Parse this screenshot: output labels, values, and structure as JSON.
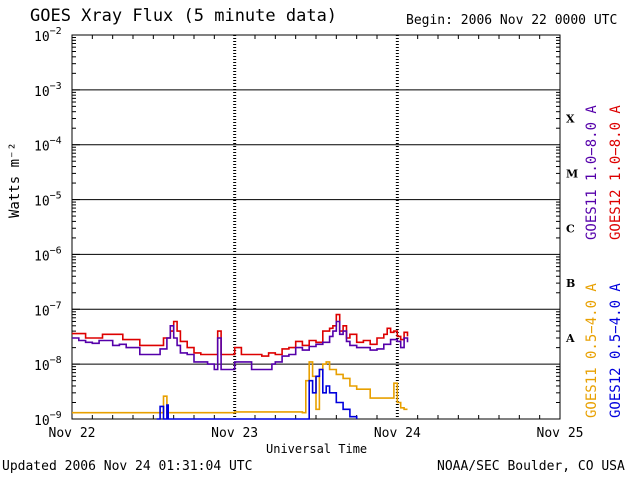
{
  "header": {
    "title": "GOES Xray Flux (5 minute data)",
    "begin": "Begin:  2006 Nov 22 0000 UTC"
  },
  "footer": {
    "updated": "Updated 2006 Nov 24 01:31:04 UTC",
    "credit": "NOAA/SEC Boulder, CO USA"
  },
  "colors": {
    "goes11_long": "#5500aa",
    "goes12_long": "#dd0000",
    "goes11_short": "#e8a000",
    "goes12_short": "#0000dd"
  },
  "chart_data": {
    "type": "line",
    "title": "GOES Xray Flux (5 minute data)",
    "xlabel": "Universal Time",
    "ylabel": "Watts m⁻²",
    "y_scale": "log",
    "ylim": [
      1e-09,
      0.01
    ],
    "x_unit": "hours since 2006 Nov 22 0000 UTC",
    "xlim": [
      0,
      72
    ],
    "x_ticks": [
      {
        "x": 0,
        "label": "Nov 22"
      },
      {
        "x": 24,
        "label": "Nov 23"
      },
      {
        "x": 48,
        "label": "Nov 24"
      },
      {
        "x": 72,
        "label": "Nov 25"
      }
    ],
    "y_ticks": [
      {
        "v": 1e-09,
        "base": "10",
        "exp": "−9"
      },
      {
        "v": 1e-08,
        "base": "10",
        "exp": "−8"
      },
      {
        "v": 1e-07,
        "base": "10",
        "exp": "−7"
      },
      {
        "v": 1e-06,
        "base": "10",
        "exp": "−6"
      },
      {
        "v": 1e-05,
        "base": "10",
        "exp": "−5"
      },
      {
        "v": 0.0001,
        "base": "10",
        "exp": "−4"
      },
      {
        "v": 0.001,
        "base": "10",
        "exp": "−3"
      },
      {
        "v": 0.01,
        "base": "10",
        "exp": "−2"
      }
    ],
    "flare_classes": [
      {
        "label": "A",
        "v": 3e-08
      },
      {
        "label": "B",
        "v": 3e-07
      },
      {
        "label": "C",
        "v": 3e-06
      },
      {
        "label": "M",
        "v": 3e-05
      },
      {
        "label": "X",
        "v": 0.0003
      }
    ],
    "legend": [
      {
        "text": "GOES11 1.0−8.0 A",
        "color": "#5500aa"
      },
      {
        "text": "GOES12 1.0−8.0 A",
        "color": "#dd0000"
      },
      {
        "text": "GOES11 0.5−4.0 A",
        "color": "#e8a000"
      },
      {
        "text": "GOES12 0.5−4.0 A",
        "color": "#0000dd"
      }
    ],
    "series": [
      {
        "name": "GOES12 1.0-8.0 A",
        "color": "#dd0000",
        "points": [
          [
            0,
            3.6e-08
          ],
          [
            1.5,
            3.6e-08
          ],
          [
            2,
            3e-08
          ],
          [
            4,
            3e-08
          ],
          [
            4.5,
            3.5e-08
          ],
          [
            7,
            3.5e-08
          ],
          [
            7.5,
            2.8e-08
          ],
          [
            9.5,
            2.8e-08
          ],
          [
            10,
            2.2e-08
          ],
          [
            13,
            2.2e-08
          ],
          [
            13.5,
            3e-08
          ],
          [
            14.5,
            4e-08
          ],
          [
            15,
            6e-08
          ],
          [
            15.5,
            4e-08
          ],
          [
            16,
            2.6e-08
          ],
          [
            17,
            2e-08
          ],
          [
            18,
            1.6e-08
          ],
          [
            19,
            1.5e-08
          ],
          [
            21,
            1.5e-08
          ],
          [
            21.5,
            4e-08
          ],
          [
            22,
            1.5e-08
          ],
          [
            23.5,
            1.5e-08
          ],
          [
            24,
            2e-08
          ],
          [
            25,
            1.5e-08
          ],
          [
            28,
            1.4e-08
          ],
          [
            29,
            1.6e-08
          ],
          [
            30,
            1.5e-08
          ],
          [
            31,
            1.9e-08
          ],
          [
            32,
            2e-08
          ],
          [
            33,
            2.6e-08
          ],
          [
            34,
            2.2e-08
          ],
          [
            35,
            2.7e-08
          ],
          [
            36,
            2.5e-08
          ],
          [
            37,
            4e-08
          ],
          [
            38,
            4.5e-08
          ],
          [
            38.5,
            5e-08
          ],
          [
            39,
            8e-08
          ],
          [
            39.5,
            4e-08
          ],
          [
            40,
            5e-08
          ],
          [
            40.5,
            3e-08
          ],
          [
            41,
            3.5e-08
          ],
          [
            42,
            2.5e-08
          ],
          [
            43,
            2.7e-08
          ],
          [
            44,
            2.3e-08
          ],
          [
            45,
            3e-08
          ],
          [
            46,
            3.5e-08
          ],
          [
            46.5,
            4.5e-08
          ],
          [
            47,
            3.8e-08
          ],
          [
            47.5,
            4e-08
          ],
          [
            48,
            3.2e-08
          ],
          [
            48.5,
            2.8e-08
          ],
          [
            49,
            3.8e-08
          ],
          [
            49.5,
            3.2e-08
          ]
        ]
      },
      {
        "name": "GOES11 1.0-8.0 A",
        "color": "#5500aa",
        "points": [
          [
            0,
            3e-08
          ],
          [
            1,
            2.7e-08
          ],
          [
            2,
            2.5e-08
          ],
          [
            3,
            2.4e-08
          ],
          [
            4,
            2.7e-08
          ],
          [
            5,
            2.7e-08
          ],
          [
            6,
            2.2e-08
          ],
          [
            7,
            2.3e-08
          ],
          [
            8,
            2e-08
          ],
          [
            9,
            2e-08
          ],
          [
            10,
            1.5e-08
          ],
          [
            12,
            1.5e-08
          ],
          [
            13,
            1.9e-08
          ],
          [
            14,
            3e-08
          ],
          [
            14.5,
            5e-08
          ],
          [
            15,
            3e-08
          ],
          [
            15.5,
            2.2e-08
          ],
          [
            16,
            1.6e-08
          ],
          [
            17,
            1.5e-08
          ],
          [
            18,
            1.1e-08
          ],
          [
            20,
            1e-08
          ],
          [
            21,
            8e-09
          ],
          [
            21.5,
            3e-08
          ],
          [
            22,
            8e-09
          ],
          [
            23.5,
            8e-09
          ],
          [
            24,
            1.1e-08
          ],
          [
            26,
            1.1e-08
          ],
          [
            26.5,
            8e-09
          ],
          [
            29,
            8e-09
          ],
          [
            29.5,
            1e-08
          ],
          [
            30,
            1.1e-08
          ],
          [
            31,
            1.4e-08
          ],
          [
            32,
            1.5e-08
          ],
          [
            33,
            2e-08
          ],
          [
            34,
            1.8e-08
          ],
          [
            35,
            2.1e-08
          ],
          [
            36,
            2.3e-08
          ],
          [
            37,
            2.5e-08
          ],
          [
            38,
            3.2e-08
          ],
          [
            38.5,
            4e-08
          ],
          [
            39,
            6e-08
          ],
          [
            39.5,
            3.5e-08
          ],
          [
            40,
            4e-08
          ],
          [
            40.5,
            2.6e-08
          ],
          [
            41,
            2.2e-08
          ],
          [
            42,
            2e-08
          ],
          [
            43,
            2e-08
          ],
          [
            44,
            1.8e-08
          ],
          [
            45,
            1.9e-08
          ],
          [
            46,
            2.3e-08
          ],
          [
            47,
            2.8e-08
          ],
          [
            48,
            2.6e-08
          ],
          [
            48.5,
            2e-08
          ],
          [
            49,
            3e-08
          ],
          [
            49.5,
            2.5e-08
          ]
        ]
      },
      {
        "name": "GOES11 0.5-4.0 A",
        "color": "#e8a000",
        "points": [
          [
            0,
            1.3e-09
          ],
          [
            10,
            1.3e-09
          ],
          [
            13,
            1.3e-09
          ],
          [
            13.5,
            2.6e-09
          ],
          [
            14,
            1.3e-09
          ],
          [
            17,
            1.3e-09
          ],
          [
            24,
            1.35e-09
          ],
          [
            32,
            1.35e-09
          ],
          [
            34,
            1.3e-09
          ],
          [
            34.5,
            5e-09
          ],
          [
            35,
            1.1e-08
          ],
          [
            35.5,
            6e-09
          ],
          [
            36,
            1.5e-09
          ],
          [
            36.5,
            8e-09
          ],
          [
            37,
            1e-08
          ],
          [
            37.5,
            1.1e-08
          ],
          [
            38,
            8e-09
          ],
          [
            39,
            6.5e-09
          ],
          [
            40,
            5.5e-09
          ],
          [
            41,
            4e-09
          ],
          [
            42,
            3.5e-09
          ],
          [
            43,
            3.5e-09
          ],
          [
            44,
            2.4e-09
          ],
          [
            47,
            2.4e-09
          ],
          [
            47.5,
            4.5e-09
          ],
          [
            48,
            2e-09
          ],
          [
            48.5,
            1.6e-09
          ],
          [
            49,
            1.5e-09
          ],
          [
            49.5,
            1.5e-09
          ]
        ]
      },
      {
        "name": "GOES12 0.5-4.0 A",
        "color": "#0000dd",
        "points": [
          [
            12.5,
            1e-09
          ],
          [
            13,
            1.7e-09
          ],
          [
            13.5,
            1e-09
          ],
          [
            14,
            1.8e-09
          ],
          [
            14.2,
            1e-09
          ],
          [
            24,
            1e-09
          ],
          [
            34.5,
            1e-09
          ],
          [
            35,
            5e-09
          ],
          [
            35.5,
            3e-09
          ],
          [
            36,
            6e-09
          ],
          [
            36.5,
            8e-09
          ],
          [
            37,
            3e-09
          ],
          [
            37.5,
            4e-09
          ],
          [
            38,
            3e-09
          ],
          [
            39,
            2e-09
          ],
          [
            40,
            1.5e-09
          ],
          [
            41,
            1.1e-09
          ],
          [
            42,
            1e-09
          ]
        ]
      }
    ]
  }
}
